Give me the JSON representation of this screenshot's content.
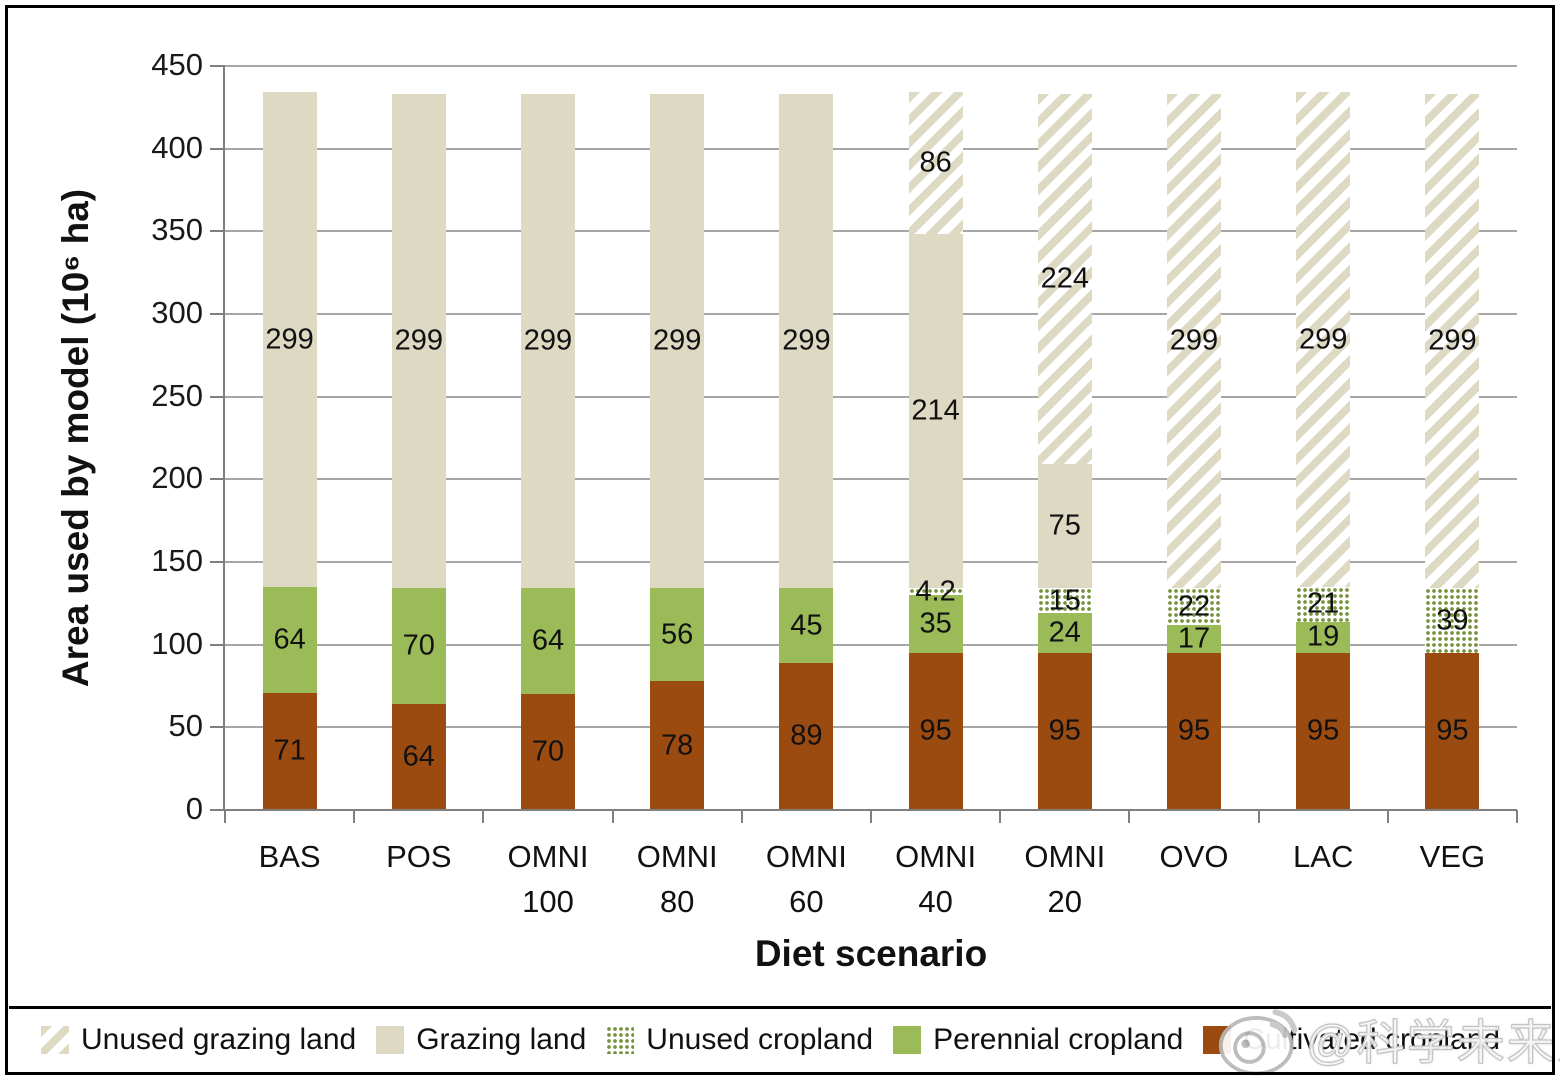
{
  "figure": {
    "watermark": {
      "icon": "weibo-icon",
      "handle": "@科学未来人"
    }
  },
  "chart_data": {
    "type": "stacked-bar",
    "title": "",
    "xlabel": "Diet scenario",
    "ylabel": "Area used by model (10⁶ ha)",
    "ylim": [
      0,
      450
    ],
    "ytick_step": 50,
    "grid": true,
    "legend_position": "bottom",
    "categories": [
      [
        "BAS"
      ],
      [
        "POS"
      ],
      [
        "OMNI",
        "100"
      ],
      [
        "OMNI",
        "80"
      ],
      [
        "OMNI",
        "60"
      ],
      [
        "OMNI",
        "40"
      ],
      [
        "OMNI",
        "20"
      ],
      [
        "OVO"
      ],
      [
        "LAC"
      ],
      [
        "VEG"
      ]
    ],
    "series": [
      {
        "name": "Cultivated cropland",
        "style": "solid",
        "color": "#9c4b10",
        "values": [
          71,
          64,
          70,
          78,
          89,
          95,
          95,
          95,
          95,
          95
        ]
      },
      {
        "name": "Perennial cropland",
        "style": "solid",
        "color": "#9bbb59",
        "values": [
          64,
          70,
          64,
          56,
          45,
          35,
          24,
          17,
          19,
          0
        ]
      },
      {
        "name": "Unused cropland",
        "style": "dotted",
        "color": "#76933c",
        "values": [
          0,
          0,
          0,
          0,
          0,
          4.2,
          15,
          22,
          21,
          39
        ]
      },
      {
        "name": "Grazing land",
        "style": "solid",
        "color": "#ddd9c3",
        "values": [
          299,
          299,
          299,
          299,
          299,
          214,
          75,
          0,
          0,
          0
        ]
      },
      {
        "name": "Unused grazing land",
        "style": "hatched",
        "color": "#ddd9c3",
        "values": [
          0,
          0,
          0,
          0,
          0,
          86,
          224,
          299,
          299,
          299
        ]
      }
    ],
    "legend": [
      {
        "label": "Unused grazing land",
        "style": "hatched",
        "color": "#ddd9c3"
      },
      {
        "label": "Grazing land",
        "style": "solid",
        "color": "#ddd9c3"
      },
      {
        "label": "Unused cropland",
        "style": "dotted",
        "color": "#76933c"
      },
      {
        "label": "Perennial cropland",
        "style": "solid",
        "color": "#9bbb59"
      },
      {
        "label": "Cultivated cropland",
        "style": "solid",
        "color": "#9c4b10"
      }
    ]
  }
}
